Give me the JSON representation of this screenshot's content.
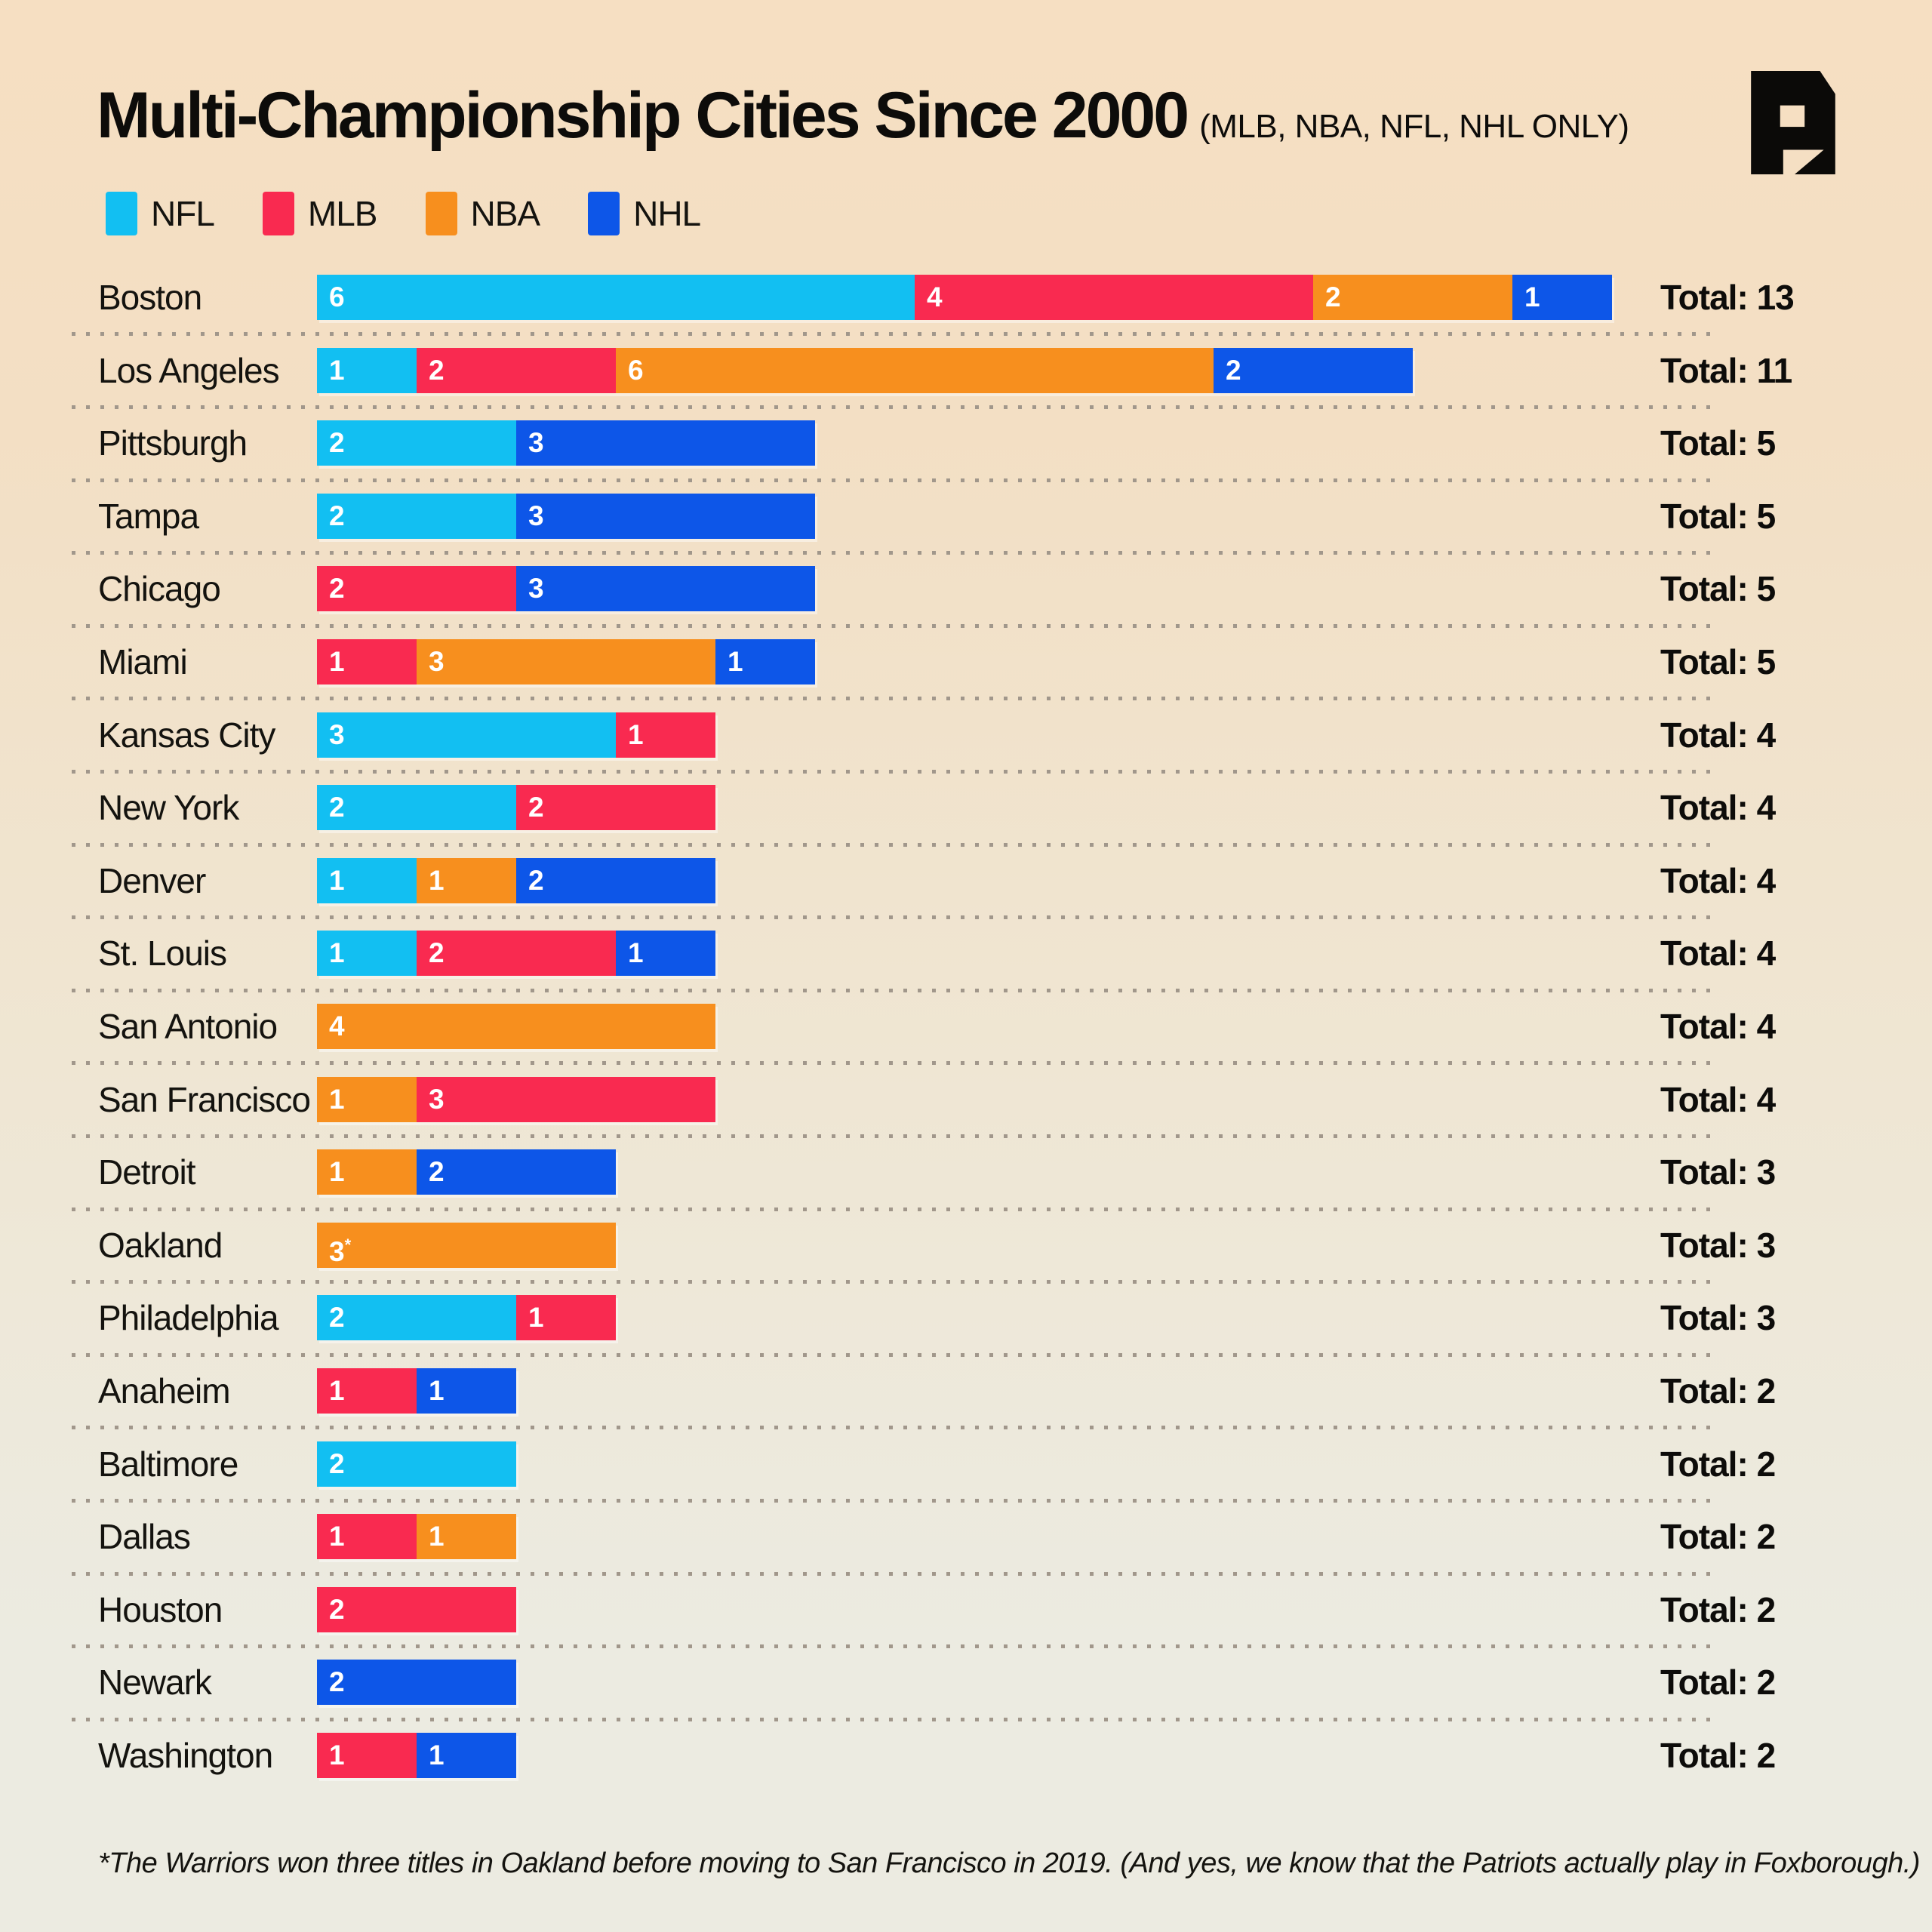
{
  "title": "Multi-Championship Cities Since 2000",
  "subtitle": "(MLB, NBA, NFL, NHL ONLY)",
  "total_prefix": "Total:",
  "footnote": "*The Warriors won three titles in Oakland before moving to San Francisco in 2019. (And yes, we know that the Patriots actually play in Foxborough.)",
  "colors": {
    "NFL": "#12bff2",
    "MLB": "#f92a50",
    "NBA": "#f78f1e",
    "NHL": "#0d56e8",
    "background_top": "#f6dfc2",
    "background_bottom": "#ecebe1",
    "text": "#0d0c0a",
    "separator_dots": "#a1978b",
    "logo": "#0b0a08"
  },
  "legend": {
    "items": [
      {
        "label": "NFL",
        "color": "#12bff2"
      },
      {
        "label": "MLB",
        "color": "#f92a50"
      },
      {
        "label": "NBA",
        "color": "#f78f1e"
      },
      {
        "label": "NHL",
        "color": "#0d56e8"
      }
    ]
  },
  "chart_data": {
    "type": "bar",
    "stacked": true,
    "orientation": "horizontal",
    "value_unit": "championships won since 2000",
    "series_order": [
      "NFL",
      "MLB",
      "NBA",
      "NHL"
    ],
    "categories": [
      "Boston",
      "Los Angeles",
      "Pittsburgh",
      "Tampa",
      "Chicago",
      "Miami",
      "Kansas City",
      "New York",
      "Denver",
      "St. Louis",
      "San Antonio",
      "San Francisco",
      "Detroit",
      "Oakland",
      "Philadelphia",
      "Anaheim",
      "Baltimore",
      "Dallas",
      "Houston",
      "Newark",
      "Washington"
    ],
    "rows": [
      {
        "city": "Boston",
        "total": 13,
        "segments": [
          {
            "league": "NFL",
            "value": 6
          },
          {
            "league": "MLB",
            "value": 4
          },
          {
            "league": "NBA",
            "value": 2
          },
          {
            "league": "NHL",
            "value": 1
          }
        ]
      },
      {
        "city": "Los Angeles",
        "total": 11,
        "segments": [
          {
            "league": "NFL",
            "value": 1
          },
          {
            "league": "MLB",
            "value": 2
          },
          {
            "league": "NBA",
            "value": 6
          },
          {
            "league": "NHL",
            "value": 2
          }
        ]
      },
      {
        "city": "Pittsburgh",
        "total": 5,
        "segments": [
          {
            "league": "NFL",
            "value": 2
          },
          {
            "league": "NHL",
            "value": 3
          }
        ]
      },
      {
        "city": "Tampa",
        "total": 5,
        "segments": [
          {
            "league": "NFL",
            "value": 2
          },
          {
            "league": "NHL",
            "value": 3
          }
        ]
      },
      {
        "city": "Chicago",
        "total": 5,
        "segments": [
          {
            "league": "MLB",
            "value": 2
          },
          {
            "league": "NHL",
            "value": 3
          }
        ]
      },
      {
        "city": "Miami",
        "total": 5,
        "segments": [
          {
            "league": "MLB",
            "value": 1
          },
          {
            "league": "NBA",
            "value": 3
          },
          {
            "league": "NHL",
            "value": 1
          }
        ]
      },
      {
        "city": "Kansas City",
        "total": 4,
        "segments": [
          {
            "league": "NFL",
            "value": 3
          },
          {
            "league": "MLB",
            "value": 1
          }
        ]
      },
      {
        "city": "New York",
        "total": 4,
        "segments": [
          {
            "league": "NFL",
            "value": 2
          },
          {
            "league": "MLB",
            "value": 2
          }
        ]
      },
      {
        "city": "Denver",
        "total": 4,
        "segments": [
          {
            "league": "NFL",
            "value": 1
          },
          {
            "league": "NBA",
            "value": 1
          },
          {
            "league": "NHL",
            "value": 2
          }
        ]
      },
      {
        "city": "St. Louis",
        "total": 4,
        "segments": [
          {
            "league": "NFL",
            "value": 1
          },
          {
            "league": "MLB",
            "value": 2
          },
          {
            "league": "NHL",
            "value": 1
          }
        ]
      },
      {
        "city": "San Antonio",
        "total": 4,
        "segments": [
          {
            "league": "NBA",
            "value": 4
          }
        ]
      },
      {
        "city": "San Francisco",
        "total": 4,
        "segments": [
          {
            "league": "NBA",
            "value": 1
          },
          {
            "league": "MLB",
            "value": 3
          }
        ]
      },
      {
        "city": "Detroit",
        "total": 3,
        "segments": [
          {
            "league": "NBA",
            "value": 1
          },
          {
            "league": "NHL",
            "value": 2
          }
        ]
      },
      {
        "city": "Oakland",
        "total": 3,
        "segments": [
          {
            "league": "NBA",
            "value": 3,
            "suffix": "*"
          }
        ]
      },
      {
        "city": "Philadelphia",
        "total": 3,
        "segments": [
          {
            "league": "NFL",
            "value": 2
          },
          {
            "league": "MLB",
            "value": 1
          }
        ]
      },
      {
        "city": "Anaheim",
        "total": 2,
        "segments": [
          {
            "league": "MLB",
            "value": 1
          },
          {
            "league": "NHL",
            "value": 1
          }
        ]
      },
      {
        "city": "Baltimore",
        "total": 2,
        "segments": [
          {
            "league": "NFL",
            "value": 2
          }
        ]
      },
      {
        "city": "Dallas",
        "total": 2,
        "segments": [
          {
            "league": "MLB",
            "value": 1
          },
          {
            "league": "NBA",
            "value": 1
          }
        ]
      },
      {
        "city": "Houston",
        "total": 2,
        "segments": [
          {
            "league": "MLB",
            "value": 2
          }
        ]
      },
      {
        "city": "Newark",
        "total": 2,
        "segments": [
          {
            "league": "NHL",
            "value": 2
          }
        ]
      },
      {
        "city": "Washington",
        "total": 2,
        "segments": [
          {
            "league": "MLB",
            "value": 1
          },
          {
            "league": "NHL",
            "value": 1
          }
        ]
      }
    ]
  }
}
